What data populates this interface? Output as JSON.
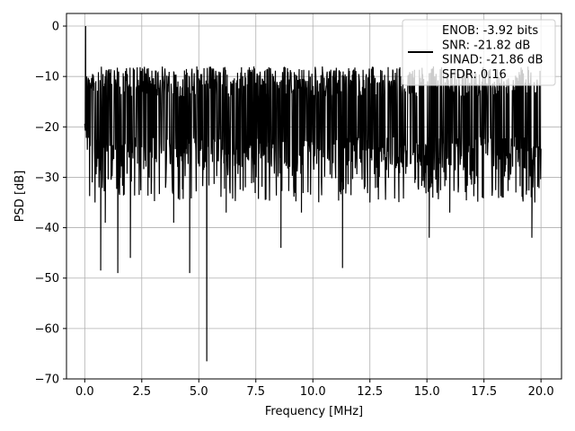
{
  "chart_data": {
    "type": "line",
    "title": "",
    "xlabel": "Frequency [MHz]",
    "ylabel": "PSD [dB]",
    "xlim": [
      -0.8,
      20.9
    ],
    "ylim": [
      -70,
      2.5
    ],
    "xticks": [
      0.0,
      2.5,
      5.0,
      7.5,
      10.0,
      12.5,
      15.0,
      17.5,
      20.0
    ],
    "xtick_labels": [
      "0.0",
      "2.5",
      "5.0",
      "7.5",
      "10.0",
      "12.5",
      "15.0",
      "17.5",
      "20.0"
    ],
    "yticks": [
      0,
      -10,
      -20,
      -30,
      -40,
      -50,
      -60,
      -70
    ],
    "ytick_labels": [
      "0",
      "−10",
      "−20",
      "−30",
      "−40",
      "−50",
      "−60",
      "−70"
    ],
    "grid": true,
    "legend_placement": "top-right",
    "series": [
      {
        "name": "ENOB: -3.92 bits\nSNR: -21.82 dB\nSINAD: -21.86 dB\nSFDR: 0.16",
        "legend_lines": [
          "ENOB: -3.92 bits",
          "SNR: -21.82 dB",
          "SINAD: -21.86 dB",
          "SFDR: 0.16"
        ],
        "color": "#000000",
        "x_range": [
          0,
          20
        ],
        "noise_floor_band": [
          -28,
          -8
        ],
        "peaks": [
          {
            "x": 0.04,
            "y": 0
          }
        ],
        "deep_dips": [
          {
            "x": 0.45,
            "y": -35
          },
          {
            "x": 0.7,
            "y": -48.5
          },
          {
            "x": 0.9,
            "y": -39
          },
          {
            "x": 1.45,
            "y": -49
          },
          {
            "x": 2.0,
            "y": -46
          },
          {
            "x": 3.9,
            "y": -39
          },
          {
            "x": 4.6,
            "y": -49
          },
          {
            "x": 5.35,
            "y": -66.5
          },
          {
            "x": 6.2,
            "y": -37
          },
          {
            "x": 8.6,
            "y": -44
          },
          {
            "x": 9.5,
            "y": -37
          },
          {
            "x": 11.3,
            "y": -48
          },
          {
            "x": 12.5,
            "y": -35
          },
          {
            "x": 15.1,
            "y": -42
          },
          {
            "x": 16.0,
            "y": -37
          },
          {
            "x": 19.6,
            "y": -42
          }
        ]
      }
    ]
  }
}
